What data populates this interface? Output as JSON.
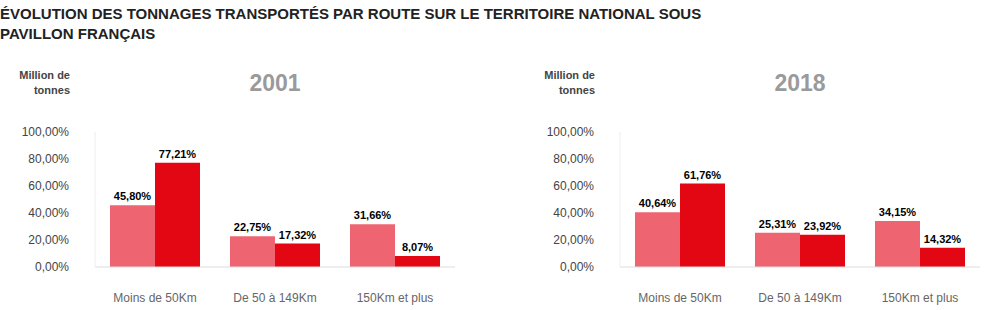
{
  "title": "ÉVOLUTION DES TONNAGES TRANSPORTÉS PAR ROUTE SUR LE TERRITOIRE NATIONAL SOUS PAVILLON FRANÇAIS",
  "chart_data": [
    {
      "type": "bar",
      "title": "2001",
      "y_label": "Million de tonnes",
      "categories": [
        "Moins de 50Km",
        "De 50 à 149Km",
        "150Km et plus"
      ],
      "series": [
        {
          "color": "#ef6471",
          "values": [
            45.8,
            22.75,
            31.66
          ],
          "value_labels": [
            "45,80%",
            "22,75%",
            "31,66%"
          ]
        },
        {
          "color": "#e30613",
          "values": [
            77.21,
            17.32,
            8.07
          ],
          "value_labels": [
            "77,21%",
            "17,32%",
            "8,07%"
          ]
        }
      ],
      "ylim": [
        0,
        100
      ],
      "yticks": [
        {
          "value": 0,
          "label": "0,00%"
        },
        {
          "value": 20,
          "label": "20,00%"
        },
        {
          "value": 40,
          "label": "40,00%"
        },
        {
          "value": 60,
          "label": "60,00%"
        },
        {
          "value": 80,
          "label": "80,00%"
        },
        {
          "value": 100,
          "label": "100,00%"
        }
      ],
      "grid": false,
      "data_labels": true
    },
    {
      "type": "bar",
      "title": "2018",
      "y_label": "Million de tonnes",
      "categories": [
        "Moins de 50Km",
        "De 50 à 149Km",
        "150Km et plus"
      ],
      "series": [
        {
          "color": "#ef6471",
          "values": [
            40.64,
            25.31,
            34.15
          ],
          "value_labels": [
            "40,64%",
            "25,31%",
            "34,15%"
          ]
        },
        {
          "color": "#e30613",
          "values": [
            61.76,
            23.92,
            14.32
          ],
          "value_labels": [
            "61,76%",
            "23,92%",
            "14,32%"
          ]
        }
      ],
      "ylim": [
        0,
        100
      ],
      "yticks": [
        {
          "value": 0,
          "label": "0,00%"
        },
        {
          "value": 20,
          "label": "20,00%"
        },
        {
          "value": 40,
          "label": "40,00%"
        },
        {
          "value": 60,
          "label": "60,00%"
        },
        {
          "value": 80,
          "label": "80,00%"
        },
        {
          "value": 100,
          "label": "100,00%"
        }
      ],
      "grid": false,
      "data_labels": true
    }
  ]
}
